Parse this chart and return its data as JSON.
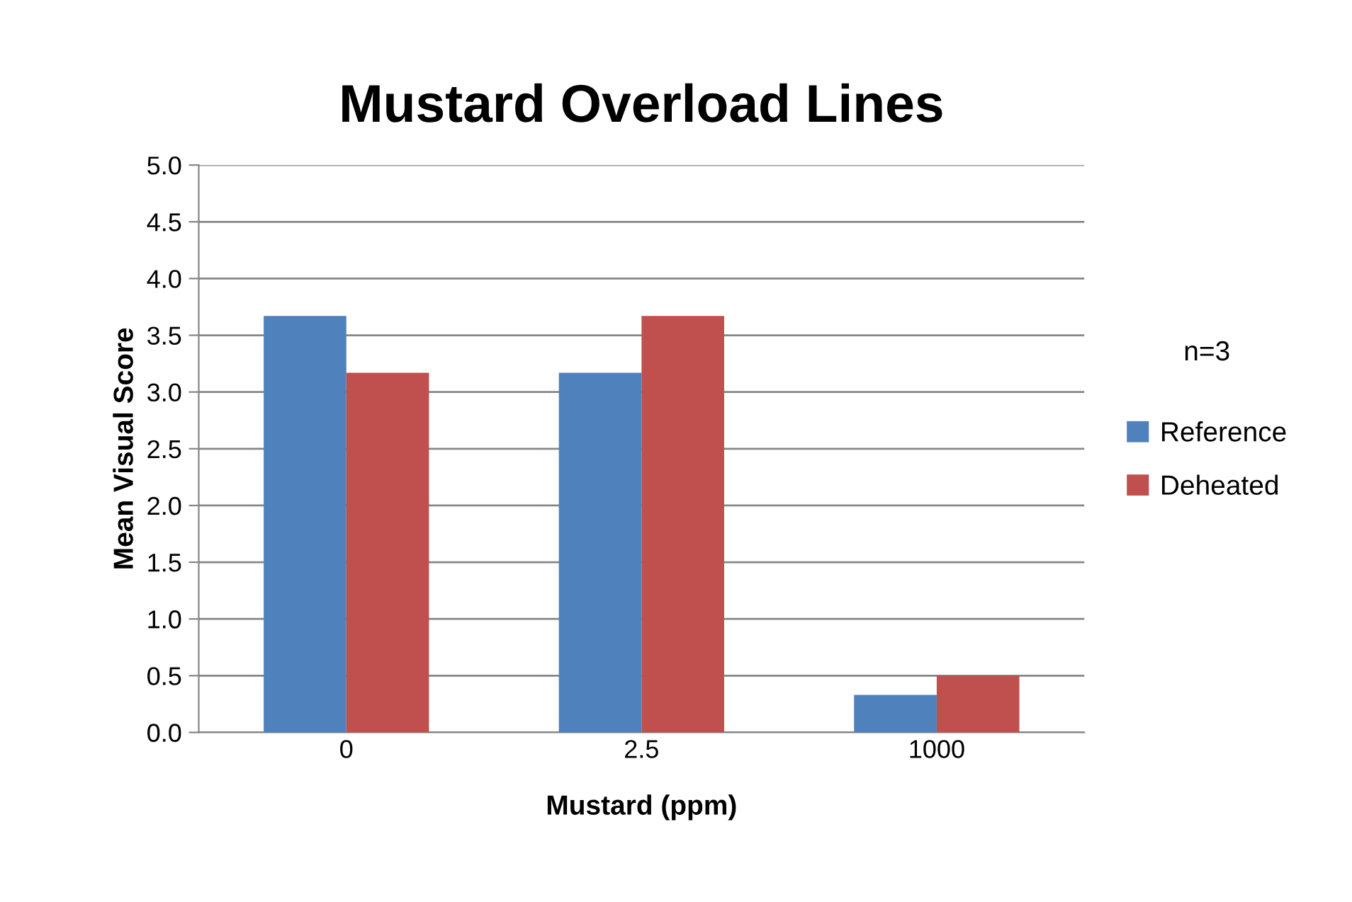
{
  "chart_data": {
    "type": "bar",
    "title": "Mustard Overload Lines",
    "xlabel": "Mustard (ppm)",
    "ylabel": "Mean Visual Score",
    "legend_title": "n=3",
    "categories": [
      "0",
      "2.5",
      "1000"
    ],
    "series": [
      {
        "name": "Reference",
        "color": "#4f81bd",
        "values": [
          3.67,
          3.17,
          0.33
        ]
      },
      {
        "name": "Deheated",
        "color": "#c0504d",
        "values": [
          3.17,
          3.67,
          0.5
        ]
      }
    ],
    "ylim": [
      0,
      5
    ],
    "yticks": [
      {
        "value": 0,
        "label": "0.0"
      },
      {
        "value": 0.5,
        "label": "0.5"
      },
      {
        "value": 1,
        "label": "1.0"
      },
      {
        "value": 1.5,
        "label": "1.5"
      },
      {
        "value": 2,
        "label": "2.0"
      },
      {
        "value": 2.5,
        "label": "2.5"
      },
      {
        "value": 3,
        "label": "3.0"
      },
      {
        "value": 3.5,
        "label": "3.5"
      },
      {
        "value": 4,
        "label": "4.0"
      },
      {
        "value": 4.5,
        "label": "4.5"
      },
      {
        "value": 5,
        "label": "5.0"
      }
    ],
    "grid": "y",
    "legend": "right"
  }
}
